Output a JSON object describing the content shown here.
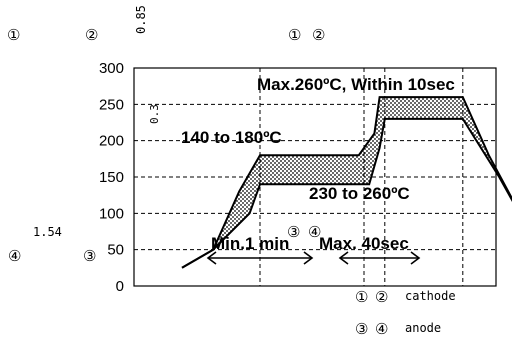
{
  "chart_data": {
    "type": "area",
    "title": "",
    "xlabel": "",
    "ylabel": "",
    "ylim": [
      0,
      300
    ],
    "yticks": [
      "0",
      "50",
      "100",
      "150",
      "200",
      "250",
      "300"
    ],
    "grid": true,
    "upper_profile": [
      [
        -0.5,
        25
      ],
      [
        0.1,
        50
      ],
      [
        0.6,
        130
      ],
      [
        1.0,
        180
      ],
      [
        2.9,
        180
      ],
      [
        3.2,
        210
      ],
      [
        3.3,
        260
      ],
      [
        4.9,
        260
      ],
      [
        5.4,
        180
      ],
      [
        6.3,
        60
      ],
      [
        6.5,
        50
      ]
    ],
    "lower_profile": [
      [
        -0.5,
        25
      ],
      [
        0.1,
        50
      ],
      [
        0.8,
        100
      ],
      [
        1.0,
        140
      ],
      [
        3.1,
        140
      ],
      [
        3.3,
        190
      ],
      [
        3.4,
        230
      ],
      [
        4.9,
        230
      ],
      [
        5.6,
        150
      ],
      [
        6.3,
        60
      ],
      [
        6.5,
        50
      ]
    ],
    "vertical_guides_x": [
      1.0,
      3.0,
      3.4,
      4.9
    ],
    "annotations": {
      "preheat": "140 to 180ºC",
      "peak": "Max.260ºC, Within 10sec",
      "reflow": "230 to 260ºC",
      "preheat_time": "Min.1 min",
      "reflow_time": "Max. 40sec"
    }
  },
  "overlay": {
    "top_number": "0.85",
    "small_number": "0.3",
    "left_number": "1.54",
    "c1": "①",
    "c2": "②",
    "c3": "③",
    "c4": "④",
    "cathode_label": "cathode",
    "anode_label": "anode"
  }
}
